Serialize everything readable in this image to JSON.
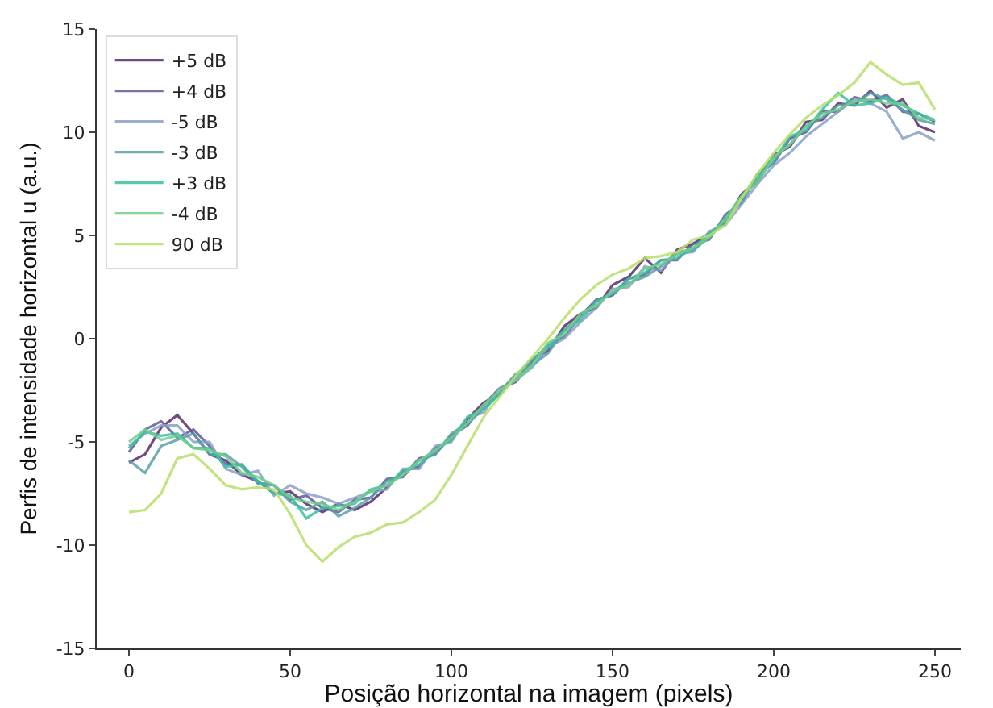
{
  "chart_data": {
    "type": "line",
    "xlabel": "Posição horizontal na imagem (pixels)",
    "ylabel": "Perfis de intensidade horizontal u (a.u.)",
    "x": [
      0,
      5,
      10,
      15,
      20,
      25,
      30,
      35,
      40,
      45,
      50,
      55,
      60,
      65,
      70,
      75,
      80,
      85,
      90,
      95,
      100,
      105,
      110,
      115,
      120,
      125,
      130,
      135,
      140,
      145,
      150,
      155,
      160,
      165,
      170,
      175,
      180,
      185,
      190,
      195,
      200,
      205,
      210,
      215,
      220,
      225,
      230,
      235,
      240,
      245,
      250
    ],
    "series": [
      {
        "name": "+5 dB",
        "color": "#5b2a6e",
        "values": [
          -6.0,
          -5.6,
          -4.3,
          -3.7,
          -4.6,
          -5.6,
          -5.9,
          -6.6,
          -6.9,
          -7.5,
          -7.4,
          -8.0,
          -8.4,
          -8.0,
          -8.3,
          -7.9,
          -7.2,
          -6.4,
          -6.2,
          -5.3,
          -4.9,
          -3.9,
          -3.1,
          -2.7,
          -1.8,
          -1.0,
          -0.6,
          0.6,
          1.2,
          1.5,
          2.6,
          3.0,
          3.9,
          3.2,
          4.3,
          4.6,
          5.1,
          5.6,
          7.0,
          7.6,
          8.9,
          9.3,
          10.5,
          10.6,
          11.4,
          11.3,
          12.0,
          11.2,
          11.6,
          10.3,
          10.0
        ]
      },
      {
        "name": "+4 dB",
        "color": "#5c5c9c",
        "values": [
          -5.5,
          -4.4,
          -4.0,
          -4.8,
          -4.4,
          -5.2,
          -6.1,
          -6.1,
          -7.0,
          -7.1,
          -7.8,
          -7.6,
          -8.2,
          -8.4,
          -7.8,
          -7.7,
          -6.8,
          -6.7,
          -5.8,
          -5.6,
          -4.7,
          -4.2,
          -3.2,
          -2.4,
          -2.1,
          -1.1,
          -0.3,
          0.1,
          1.1,
          1.9,
          2.1,
          2.9,
          3.1,
          3.8,
          3.8,
          4.6,
          4.8,
          6.0,
          6.6,
          8.0,
          8.5,
          9.7,
          10.0,
          11.0,
          11.0,
          11.7,
          11.5,
          11.8,
          11.0,
          10.9,
          10.5
        ]
      },
      {
        "name": "-5 dB",
        "color": "#8aa0c8",
        "values": [
          -5.2,
          -4.6,
          -4.2,
          -4.2,
          -5.0,
          -5.0,
          -6.3,
          -6.6,
          -6.4,
          -7.6,
          -7.1,
          -7.5,
          -7.7,
          -8.0,
          -7.7,
          -7.4,
          -7.3,
          -6.3,
          -6.3,
          -5.2,
          -5.0,
          -3.8,
          -3.6,
          -2.4,
          -2.0,
          -1.4,
          -0.4,
          0.0,
          0.8,
          1.5,
          2.4,
          2.5,
          3.5,
          3.3,
          4.1,
          4.2,
          5.2,
          5.5,
          6.5,
          7.5,
          8.4,
          9.0,
          9.8,
          10.4,
          11.0,
          11.6,
          11.4,
          11.0,
          9.7,
          10.0,
          9.6
        ]
      },
      {
        "name": "-3 dB",
        "color": "#5aa0a8",
        "values": [
          -5.9,
          -6.5,
          -5.2,
          -4.9,
          -4.6,
          -5.6,
          -5.6,
          -6.2,
          -7.0,
          -7.1,
          -7.9,
          -8.3,
          -7.9,
          -8.6,
          -8.2,
          -7.7,
          -6.9,
          -6.6,
          -5.9,
          -5.6,
          -4.6,
          -4.1,
          -3.4,
          -2.6,
          -1.7,
          -1.3,
          -0.7,
          0.4,
          1.1,
          1.8,
          2.2,
          2.7,
          3.0,
          3.5,
          4.2,
          4.3,
          4.9,
          5.9,
          6.6,
          7.9,
          8.8,
          9.4,
          10.3,
          10.7,
          11.3,
          11.4,
          11.9,
          11.6,
          11.1,
          10.6,
          10.4
        ]
      },
      {
        "name": "+3 dB",
        "color": "#3cbfa0",
        "values": [
          -5.3,
          -4.5,
          -4.7,
          -4.6,
          -5.3,
          -5.3,
          -6.2,
          -6.1,
          -6.9,
          -7.5,
          -7.6,
          -8.7,
          -8.2,
          -8.1,
          -8.0,
          -7.3,
          -7.1,
          -6.4,
          -6.1,
          -5.4,
          -4.9,
          -3.8,
          -3.4,
          -2.7,
          -1.9,
          -1.0,
          -0.4,
          0.4,
          0.9,
          1.8,
          2.2,
          2.9,
          3.2,
          3.8,
          3.9,
          4.4,
          5.1,
          5.7,
          6.9,
          7.8,
          8.6,
          9.8,
          10.1,
          11.1,
          11.9,
          11.3,
          11.4,
          11.7,
          11.3,
          10.9,
          10.6
        ]
      },
      {
        "name": "-4 dB",
        "color": "#6fcf8a",
        "values": [
          -5.0,
          -4.4,
          -4.9,
          -4.7,
          -5.3,
          -5.4,
          -5.7,
          -6.5,
          -6.7,
          -7.1,
          -7.7,
          -7.9,
          -8.0,
          -8.3,
          -7.9,
          -7.4,
          -7.1,
          -6.6,
          -5.9,
          -5.4,
          -4.8,
          -4.1,
          -3.2,
          -2.5,
          -2.0,
          -1.3,
          -0.2,
          0.2,
          1.2,
          1.6,
          2.3,
          2.6,
          3.4,
          3.6,
          4.1,
          4.4,
          4.9,
          5.8,
          6.9,
          7.6,
          8.8,
          9.4,
          10.3,
          10.9,
          11.1,
          11.5,
          11.6,
          11.4,
          11.4,
          10.7,
          10.6
        ]
      },
      {
        "name": "90 dB",
        "color": "#b8e06a",
        "values": [
          -8.4,
          -8.3,
          -7.5,
          -5.8,
          -5.6,
          -6.3,
          -7.1,
          -7.3,
          -7.2,
          -7.3,
          -8.5,
          -10.0,
          -10.8,
          -10.1,
          -9.6,
          -9.4,
          -9.0,
          -8.9,
          -8.4,
          -7.8,
          -6.6,
          -5.2,
          -3.8,
          -2.8,
          -1.8,
          -0.9,
          0.0,
          1.0,
          1.9,
          2.6,
          3.1,
          3.4,
          3.9,
          4.0,
          4.2,
          4.8,
          5.0,
          5.5,
          6.8,
          8.0,
          9.0,
          9.9,
          10.7,
          11.3,
          11.8,
          12.4,
          13.4,
          12.8,
          12.3,
          12.4,
          11.1
        ]
      }
    ],
    "xlim": [
      -10,
      258
    ],
    "xticks": [
      0,
      50,
      100,
      150,
      200,
      250
    ],
    "ylim": [
      -15,
      15
    ],
    "yticks": [
      -15,
      -10,
      -5,
      0,
      5,
      10,
      15
    ],
    "grid": false,
    "legend": "top left",
    "marker": "none",
    "line_style": "solid"
  }
}
